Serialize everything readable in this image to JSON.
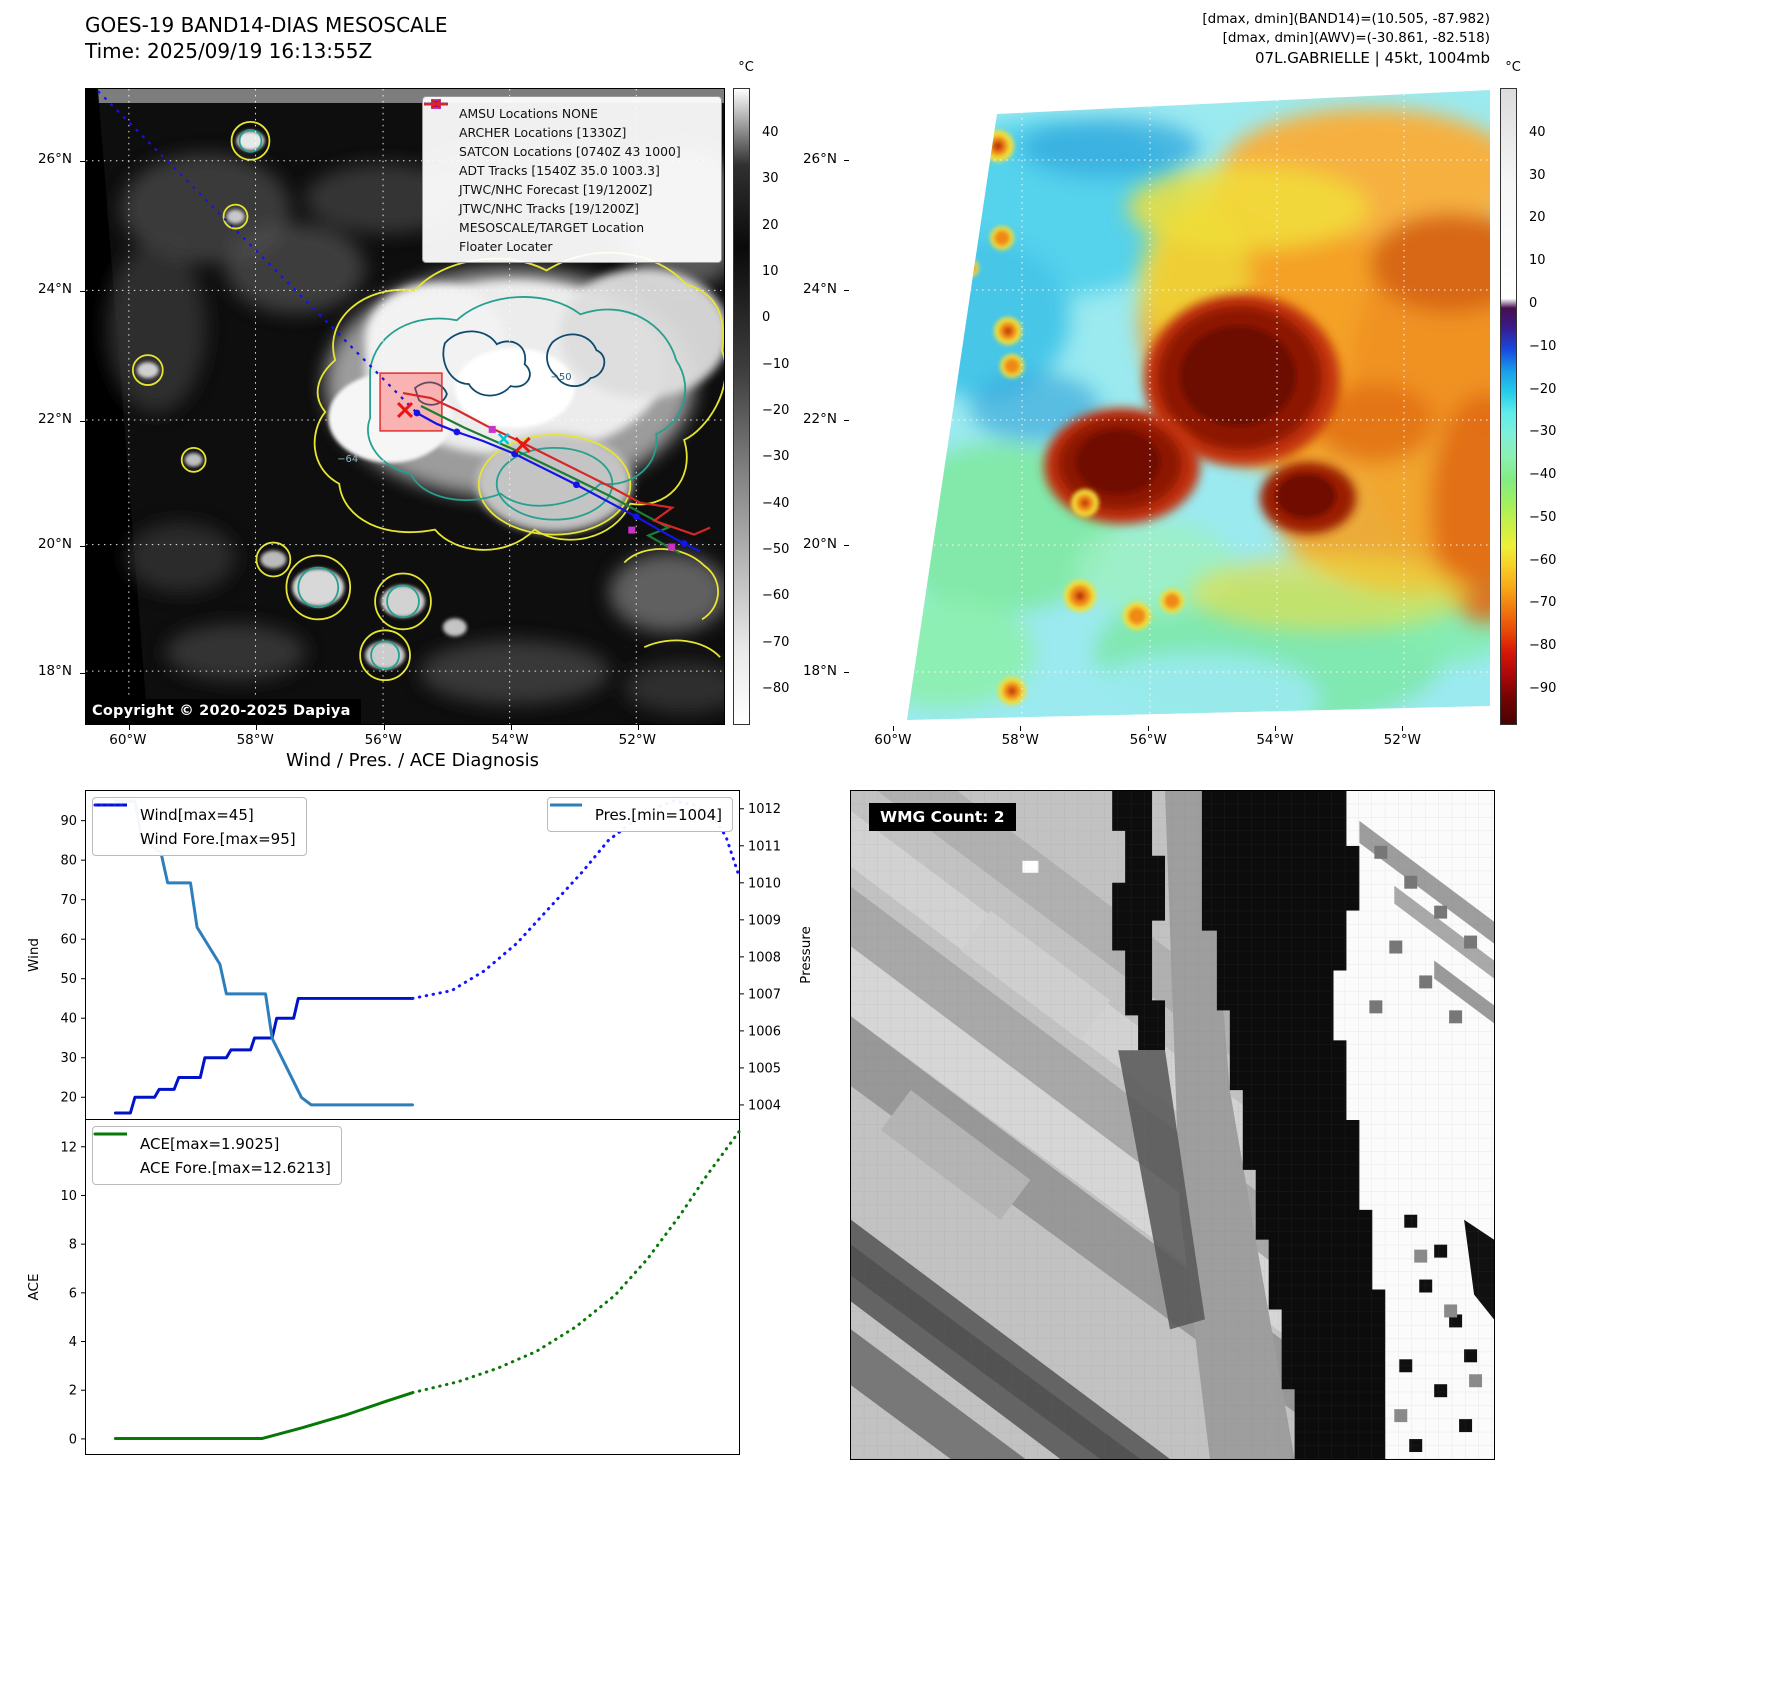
{
  "band14_panel": {
    "title_line1": "GOES-19 BAND14-DIAS MESOSCALE",
    "title_line2": "Time: 2025/09/19 16:13:55Z",
    "copyright": "Copyright © 2020-2025 Dapiya",
    "colorbar_unit": "°C",
    "colorbar_ticks": [
      "40",
      "30",
      "20",
      "10",
      "0",
      "−10",
      "−20",
      "−30",
      "−40",
      "−50",
      "−60",
      "−70",
      "−80"
    ],
    "lat_labels": [
      "26°N",
      "24°N",
      "22°N",
      "20°N",
      "18°N"
    ],
    "lon_labels": [
      "60°W",
      "58°W",
      "56°W",
      "54°W",
      "52°W"
    ],
    "contour_labels": [
      "−64",
      "−50"
    ],
    "legend_items": [
      {
        "label": "AMSU Locations NONE",
        "marker": "square",
        "color": "#c832c8"
      },
      {
        "label": "ARCHER Locations [1330Z]",
        "marker": "square",
        "color": "#c832c8"
      },
      {
        "label": "SATCON Locations [0740Z 43 1000]",
        "marker": "x",
        "color": "#00b8c8"
      },
      {
        "label": "ADT Tracks [1540Z 35.0 1003.3]",
        "marker": "line",
        "color": "#1e7d32"
      },
      {
        "label": "JTWC/NHC Forecast [19/1200Z]",
        "marker": "dotted",
        "color": "#1414e6"
      },
      {
        "label": "JTWC/NHC Tracks [19/1200Z]",
        "marker": "line-dot",
        "color": "#1414e6"
      },
      {
        "label": "MESOSCALE/TARGET Location",
        "marker": "x",
        "color": "#e81515"
      },
      {
        "label": "Floater Locater",
        "marker": "line",
        "color": "#d62728"
      }
    ]
  },
  "awv_panel": {
    "header_line1": "[dmax, dmin](BAND14)=(10.505, -87.982)",
    "header_line2": "[dmax, dmin](AWV)=(-30.861, -82.518)",
    "header_line3": "07L.GABRIELLE | 45kt, 1004mb",
    "colorbar_unit": "°C",
    "colorbar_ticks": [
      "40",
      "30",
      "20",
      "10",
      "0",
      "−10",
      "−20",
      "−30",
      "−40",
      "−50",
      "−60",
      "−70",
      "−80",
      "−90"
    ],
    "lat_labels": [
      "26°N",
      "24°N",
      "22°N",
      "20°N",
      "18°N"
    ],
    "lon_labels": [
      "60°W",
      "58°W",
      "56°W",
      "54°W",
      "52°W"
    ]
  },
  "wmg_panel": {
    "label": "WMG Count: 2"
  },
  "chart_data": [
    {
      "type": "line",
      "title": "Wind / Pres. / ACE Diagnosis",
      "ylabel_left": "Wind",
      "ylabel_right": "Pressure",
      "yticks_left": [
        20,
        30,
        40,
        50,
        60,
        70,
        80,
        90
      ],
      "yticks_right": [
        1004,
        1005,
        1006,
        1007,
        1008,
        1009,
        1010,
        1011,
        1012
      ],
      "ylim_left": [
        14.5,
        97.5
      ],
      "ylim_right": [
        1003.62,
        1012.48
      ],
      "xlim": [
        0,
        1
      ],
      "grid": false,
      "legend_left": [
        "Wind[max=45]",
        "Wind Fore.[max=95]"
      ],
      "legend_right": [
        "Pres.[min=1004]"
      ],
      "series": [
        {
          "name": "Wind[max=45]",
          "axis": "left",
          "style": "solid",
          "color": "#0013c8",
          "width": 3,
          "x": [
            0.045,
            0.068,
            0.075,
            0.105,
            0.112,
            0.135,
            0.142,
            0.175,
            0.182,
            0.215,
            0.222,
            0.252,
            0.258,
            0.285,
            0.292,
            0.318,
            0.325,
            0.5
          ],
          "y": [
            16,
            16,
            20,
            20,
            22,
            22,
            25,
            25,
            30,
            30,
            32,
            32,
            35,
            35,
            40,
            40,
            45,
            45
          ]
        },
        {
          "name": "Wind Fore.[max=95]",
          "axis": "left",
          "style": "dotted",
          "color": "#1414ff",
          "width": 3,
          "x": [
            0.5,
            0.56,
            0.61,
            0.66,
            0.71,
            0.76,
            0.8,
            0.84,
            0.87,
            0.9,
            0.93,
            0.96,
            0.98,
            1.0
          ],
          "y": [
            45,
            47,
            52,
            59,
            68,
            77,
            85,
            90,
            93,
            95,
            94,
            91,
            86,
            76
          ]
        },
        {
          "name": "Pres.[min=1004]",
          "axis": "right",
          "style": "solid",
          "color": "#2e7ebc",
          "width": 3,
          "x": [
            0.045,
            0.075,
            0.085,
            0.115,
            0.125,
            0.16,
            0.17,
            0.205,
            0.215,
            0.275,
            0.285,
            0.33,
            0.345,
            0.5
          ],
          "y": [
            1012.2,
            1012.2,
            1011.2,
            1010.8,
            1010.0,
            1010.0,
            1008.8,
            1007.8,
            1007.0,
            1007.0,
            1005.8,
            1004.2,
            1004.0,
            1004.0
          ]
        }
      ]
    },
    {
      "type": "line",
      "ylabel_left": "ACE",
      "yticks_left": [
        0,
        2,
        4,
        6,
        8,
        10,
        12
      ],
      "ylim_left": [
        -0.62,
        13.1
      ],
      "xlim": [
        0,
        1
      ],
      "grid": false,
      "legend_left": [
        "ACE[max=1.9025]",
        "ACE Fore.[max=12.6213]"
      ],
      "series": [
        {
          "name": "ACE[max=1.9025]",
          "axis": "left",
          "style": "solid",
          "color": "#067806",
          "width": 3,
          "x": [
            0.045,
            0.27,
            0.33,
            0.4,
            0.46,
            0.5
          ],
          "y": [
            0.02,
            0.02,
            0.45,
            1.0,
            1.55,
            1.9
          ]
        },
        {
          "name": "ACE Fore.[max=12.6213]",
          "axis": "left",
          "style": "dotted",
          "color": "#067806",
          "width": 3,
          "x": [
            0.5,
            0.57,
            0.63,
            0.69,
            0.75,
            0.81,
            0.86,
            0.91,
            0.95,
            1.0
          ],
          "y": [
            1.9,
            2.35,
            2.9,
            3.6,
            4.6,
            5.9,
            7.4,
            9.2,
            10.8,
            12.62
          ]
        }
      ]
    }
  ]
}
